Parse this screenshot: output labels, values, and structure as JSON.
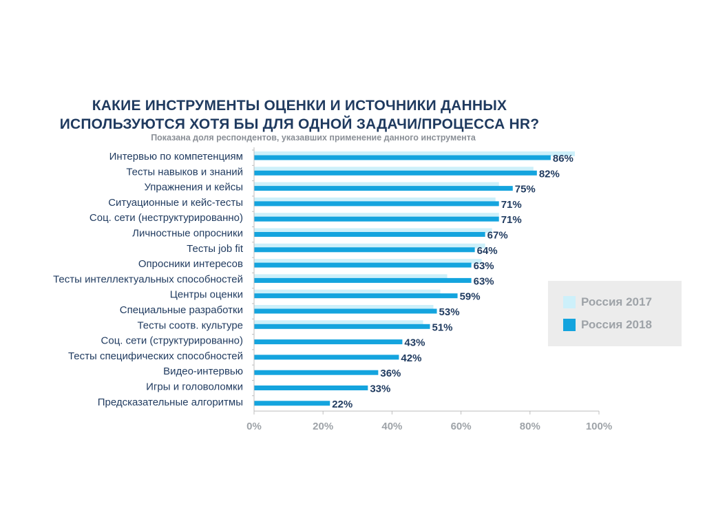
{
  "chart_data": {
    "type": "bar",
    "orientation": "horizontal",
    "title": "КАКИЕ ИНСТРУМЕНТЫ ОЦЕНКИ И ИСТОЧНИКИ ДАННЫХ ИСПОЛЬЗУЮТСЯ ХОТЯ БЫ ДЛЯ ОДНОЙ ЗАДАЧИ/ПРОЦЕССА HR?",
    "title_line1": "КАКИЕ ИНСТРУМЕНТЫ ОЦЕНКИ И ИСТОЧНИКИ ДАННЫХ",
    "title_line2": "ИСПОЛЬЗУЮТСЯ ХОТЯ БЫ ДЛЯ ОДНОЙ ЗАДАЧИ/ПРОЦЕССА HR?",
    "subtitle": "Показана доля респондентов, указавших применение данного инструмента",
    "categories": [
      "Интервью по компетенциям",
      "Тесты навыков и знаний",
      "Упражнения и кейсы",
      "Ситуационные и кейс-тесты",
      "Соц. сети (неструктурированно)",
      "Личностные опросники",
      "Тесты job fit",
      "Опросники интересов",
      "Тесты интеллектуальных способностей",
      "Центры оценки",
      "Специальные разработки",
      "Тесты соотв. культуре",
      "Соц. сети (структурированно)",
      "Тесты специфических способностей",
      "Видео-интервью",
      "Игры и головоломки",
      "Предсказательные алгоритмы"
    ],
    "series": [
      {
        "name": "Россия 2017",
        "color": "#cdf0fa",
        "values": [
          93,
          81,
          71,
          70,
          71,
          69,
          67,
          66,
          56,
          54,
          52,
          49,
          0,
          0,
          0,
          0,
          0
        ]
      },
      {
        "name": "Россия 2018",
        "color": "#14a4de",
        "values": [
          86,
          82,
          75,
          71,
          71,
          67,
          64,
          63,
          63,
          59,
          53,
          51,
          43,
          42,
          36,
          33,
          22
        ]
      }
    ],
    "value_labels": [
      "86%",
      "82%",
      "75%",
      "71%",
      "71%",
      "67%",
      "64%",
      "63%",
      "63%",
      "59%",
      "53%",
      "51%",
      "43%",
      "42%",
      "36%",
      "33%",
      "22%"
    ],
    "xticks": [
      "0%",
      "20%",
      "40%",
      "60%",
      "80%",
      "100%"
    ],
    "xlim": [
      0,
      100
    ],
    "legend_position": "right"
  }
}
